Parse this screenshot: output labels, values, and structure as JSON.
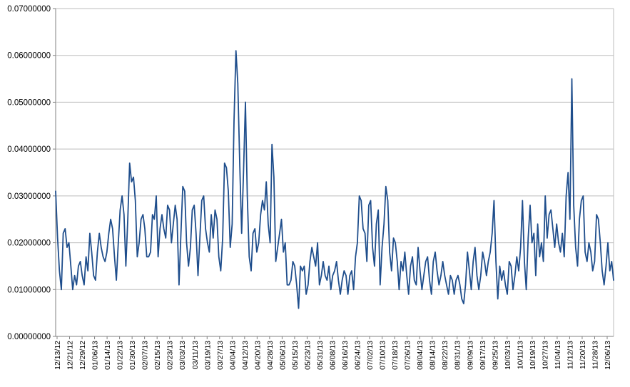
{
  "chart_data": {
    "type": "line",
    "title": "",
    "xlabel": "",
    "ylabel": "",
    "ylim": [
      0,
      0.07
    ],
    "y_ticks": [
      "0.00000000",
      "0.01000000",
      "0.02000000",
      "0.03000000",
      "0.04000000",
      "0.05000000",
      "0.06000000",
      "0.07000000"
    ],
    "y_tick_values": [
      0,
      0.01,
      0.02,
      0.03,
      0.04,
      0.05,
      0.06,
      0.07
    ],
    "x_ticks": [
      "12/13/12",
      "12/21/12",
      "12/29/12",
      "01/06/13",
      "01/14/13",
      "01/22/13",
      "01/30/13",
      "02/07/13",
      "02/15/13",
      "02/23/13",
      "03/03/13",
      "03/11/13",
      "03/19/13",
      "03/27/13",
      "04/04/13",
      "04/12/13",
      "04/20/13",
      "04/28/13",
      "05/06/13",
      "05/15/13",
      "05/23/13",
      "05/31/13",
      "06/08/13",
      "06/16/13",
      "06/24/13",
      "07/02/13",
      "07/10/13",
      "07/18/13",
      "07/26/13",
      "08/04/13",
      "08/14/13",
      "08/22/13",
      "08/31/13",
      "09/09/13",
      "09/17/13",
      "09/25/13",
      "10/03/13",
      "10/11/13",
      "10/19/13",
      "10/27/13",
      "11/04/13",
      "11/12/13",
      "11/20/13",
      "11/28/13",
      "12/06/13"
    ],
    "grid": true,
    "legend": "none",
    "line_color": "#1f4e8c",
    "grid_color": "#bdbdbd",
    "series": [
      {
        "values": [
          0.031,
          0.021,
          0.014,
          0.01,
          0.022,
          0.023,
          0.019,
          0.02,
          0.015,
          0.01,
          0.013,
          0.011,
          0.015,
          0.016,
          0.013,
          0.011,
          0.017,
          0.014,
          0.022,
          0.018,
          0.013,
          0.012,
          0.018,
          0.022,
          0.019,
          0.017,
          0.016,
          0.018,
          0.022,
          0.025,
          0.023,
          0.017,
          0.012,
          0.02,
          0.027,
          0.03,
          0.026,
          0.015,
          0.025,
          0.037,
          0.033,
          0.034,
          0.029,
          0.017,
          0.02,
          0.025,
          0.026,
          0.023,
          0.017,
          0.017,
          0.018,
          0.026,
          0.025,
          0.03,
          0.017,
          0.023,
          0.026,
          0.023,
          0.021,
          0.028,
          0.027,
          0.02,
          0.024,
          0.028,
          0.025,
          0.011,
          0.022,
          0.032,
          0.031,
          0.02,
          0.015,
          0.019,
          0.027,
          0.028,
          0.022,
          0.013,
          0.021,
          0.029,
          0.03,
          0.023,
          0.02,
          0.018,
          0.026,
          0.021,
          0.027,
          0.025,
          0.017,
          0.014,
          0.021,
          0.037,
          0.036,
          0.031,
          0.019,
          0.024,
          0.046,
          0.061,
          0.054,
          0.037,
          0.022,
          0.035,
          0.05,
          0.03,
          0.017,
          0.014,
          0.022,
          0.023,
          0.018,
          0.02,
          0.026,
          0.029,
          0.027,
          0.033,
          0.024,
          0.02,
          0.041,
          0.034,
          0.016,
          0.019,
          0.022,
          0.025,
          0.018,
          0.02,
          0.011,
          0.011,
          0.012,
          0.016,
          0.015,
          0.011,
          0.006,
          0.015,
          0.014,
          0.015,
          0.009,
          0.011,
          0.016,
          0.019,
          0.017,
          0.015,
          0.02,
          0.011,
          0.013,
          0.016,
          0.013,
          0.012,
          0.015,
          0.01,
          0.013,
          0.014,
          0.016,
          0.012,
          0.009,
          0.012,
          0.014,
          0.013,
          0.009,
          0.013,
          0.014,
          0.01,
          0.017,
          0.02,
          0.03,
          0.029,
          0.023,
          0.022,
          0.016,
          0.028,
          0.029,
          0.019,
          0.015,
          0.024,
          0.027,
          0.011,
          0.019,
          0.024,
          0.032,
          0.029,
          0.018,
          0.014,
          0.021,
          0.02,
          0.016,
          0.01,
          0.016,
          0.014,
          0.018,
          0.013,
          0.009,
          0.015,
          0.017,
          0.012,
          0.011,
          0.019,
          0.014,
          0.01,
          0.013,
          0.016,
          0.017,
          0.012,
          0.009,
          0.016,
          0.018,
          0.014,
          0.011,
          0.013,
          0.016,
          0.013,
          0.011,
          0.009,
          0.013,
          0.012,
          0.009,
          0.012,
          0.013,
          0.011,
          0.008,
          0.007,
          0.011,
          0.018,
          0.014,
          0.01,
          0.016,
          0.019,
          0.013,
          0.01,
          0.013,
          0.018,
          0.016,
          0.013,
          0.016,
          0.018,
          0.022,
          0.029,
          0.016,
          0.008,
          0.015,
          0.012,
          0.014,
          0.011,
          0.009,
          0.016,
          0.015,
          0.01,
          0.013,
          0.017,
          0.014,
          0.019,
          0.029,
          0.016,
          0.01,
          0.021,
          0.028,
          0.02,
          0.022,
          0.013,
          0.024,
          0.017,
          0.02,
          0.016,
          0.03,
          0.021,
          0.026,
          0.027,
          0.023,
          0.019,
          0.024,
          0.02,
          0.018,
          0.022,
          0.017,
          0.03,
          0.035,
          0.025,
          0.055,
          0.028,
          0.019,
          0.015,
          0.025,
          0.029,
          0.03,
          0.018,
          0.016,
          0.02,
          0.018,
          0.014,
          0.016,
          0.026,
          0.025,
          0.02,
          0.014,
          0.011,
          0.015,
          0.02,
          0.014,
          0.016,
          0.012
        ]
      }
    ]
  }
}
